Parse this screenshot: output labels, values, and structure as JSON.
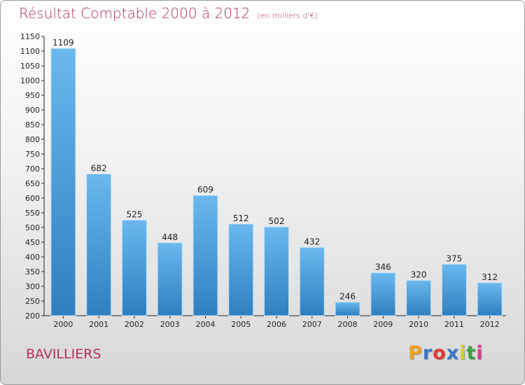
{
  "title": "Résultat Comptable 2000 à 2012",
  "unit": "(en milliers d'€)",
  "commune": "BAVILLIERS",
  "logo": {
    "letters": [
      "P",
      "r",
      "o",
      "x",
      "i",
      "t",
      "i"
    ],
    "colors": [
      "#f0a020",
      "#3a78c8",
      "#e03a3a",
      "#3a78c8",
      "#d0d020",
      "#3aa040",
      "#e03a8a"
    ]
  },
  "colors": {
    "bar_light": "#6ab8ee",
    "bar_dark": "#2f7fc0",
    "title": "#b5305a"
  },
  "chart_data": {
    "type": "bar",
    "categories": [
      "2000",
      "2001",
      "2002",
      "2003",
      "2004",
      "2005",
      "2006",
      "2007",
      "2008",
      "2009",
      "2010",
      "2011",
      "2012"
    ],
    "values": [
      1109,
      682,
      525,
      448,
      609,
      512,
      502,
      432,
      246,
      346,
      320,
      375,
      312
    ],
    "ylim": [
      200,
      1150
    ],
    "yticks": [
      200,
      250,
      300,
      350,
      400,
      450,
      500,
      550,
      600,
      650,
      700,
      750,
      800,
      850,
      900,
      950,
      1000,
      1050,
      1100,
      1150
    ],
    "grid": false
  }
}
